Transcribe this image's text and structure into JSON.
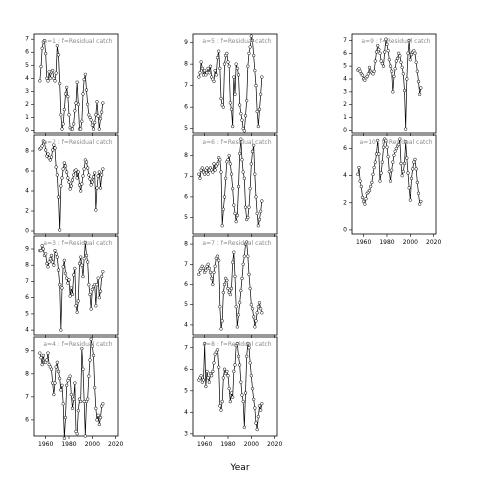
{
  "chart_data": {
    "type": "line",
    "xlabel": "Year",
    "x_ticks": [
      "1960",
      "1980",
      "2000",
      "2020"
    ],
    "xlim": [
      1950,
      2022
    ],
    "panels": [
      {
        "title": "a=1 : f=Residual catch",
        "col": 0,
        "row": 0,
        "ylim": [
          -0.2,
          7.4
        ],
        "yticks": [
          "0",
          "1",
          "2",
          "3",
          "4",
          "5",
          "6",
          "7"
        ],
        "x0": 1955,
        "values": [
          3.8,
          4.9,
          6.3,
          6.8,
          6.9,
          5.9,
          4.0,
          3.8,
          4.5,
          4.0,
          4.5,
          4.6,
          4.0,
          3.8,
          4.4,
          6.5,
          5.8,
          3.6,
          1.2,
          0.1,
          0.5,
          1.6,
          2.8,
          3.3,
          2.6,
          1.2,
          0.2,
          0.1,
          0.1,
          0.5,
          1.5,
          2.1,
          3.7,
          2.0,
          0.1,
          0.1,
          0.7,
          2.8,
          3.9,
          4.3,
          3.1,
          2.0,
          1.2,
          1.0,
          0.8,
          0.4,
          0.1,
          0.6,
          1.2,
          2.2,
          1.1,
          0.1,
          0.9,
          1.4,
          2.1
        ]
      },
      {
        "title": "a=2 : f=Residual catch",
        "col": 0,
        "row": 1,
        "ylim": [
          -0.3,
          9.6
        ],
        "yticks": [
          "0",
          "2",
          "4",
          "6",
          "8"
        ],
        "x0": 1955,
        "values": [
          8.2,
          8.3,
          8.5,
          9.0,
          8.9,
          8.1,
          7.5,
          7.7,
          7.3,
          7.1,
          7.4,
          8.1,
          8.6,
          8.3,
          6.4,
          5.6,
          3.4,
          0.1,
          4.5,
          5.3,
          6.2,
          6.8,
          6.5,
          5.9,
          5.3,
          4.9,
          4.2,
          4.5,
          5.1,
          5.6,
          6.0,
          6.1,
          5.3,
          5.9,
          4.6,
          4.0,
          4.7,
          5.5,
          6.2,
          7.1,
          6.9,
          6.3,
          5.6,
          5.2,
          4.6,
          4.9,
          5.4,
          5.8,
          2.1,
          4.3,
          5.5,
          5.9,
          4.3,
          5.6,
          6.2
        ]
      },
      {
        "title": "a=3 : f=Residual catch",
        "col": 0,
        "row": 2,
        "ylim": [
          3.7,
          9.8
        ],
        "yticks": [
          "4",
          "5",
          "6",
          "7",
          "8",
          "9"
        ],
        "x0": 1955,
        "values": [
          8.9,
          8.9,
          9.2,
          9.0,
          8.6,
          8.7,
          8.1,
          7.9,
          8.2,
          8.4,
          8.6,
          8.2,
          8.0,
          8.9,
          8.7,
          8.5,
          7.7,
          6.8,
          4.0,
          6.6,
          7.9,
          8.3,
          7.5,
          7.2,
          6.9,
          7.1,
          6.1,
          6.6,
          6.2,
          7.4,
          7.8,
          5.5,
          5.1,
          5.8,
          8.1,
          8.5,
          8.0,
          7.3,
          8.4,
          9.4,
          8.6,
          8.2,
          6.8,
          6.2,
          5.3,
          6.5,
          6.7,
          6.8,
          5.5,
          6.8,
          7.2,
          6.0,
          6.4,
          7.3,
          7.6
        ]
      },
      {
        "title": "a=4 : f=Residual catch",
        "col": 0,
        "row": 3,
        "ylim": [
          5.3,
          9.6
        ],
        "yticks": [
          "6",
          "7",
          "8",
          "9"
        ],
        "x0": 1955,
        "values": [
          8.9,
          8.7,
          8.4,
          8.8,
          8.5,
          8.5,
          8.6,
          8.9,
          8.4,
          8.3,
          8.2,
          7.6,
          7.1,
          7.6,
          8.3,
          8.5,
          8.1,
          7.8,
          7.3,
          7.5,
          6.7,
          5.2,
          6.1,
          7.5,
          7.7,
          7.8,
          7.9,
          7.1,
          6.5,
          6.9,
          7.6,
          5.5,
          5.4,
          6.4,
          6.9,
          6.8,
          9.1,
          8.2,
          6.8,
          5.3,
          6.8,
          6.9,
          7.9,
          8.6,
          9.5,
          9.2,
          8.8,
          7.4,
          6.5,
          6.0,
          6.2,
          5.8,
          6.1,
          6.6,
          6.7
        ]
      },
      {
        "title": "a=5 : f=Residual catch",
        "col": 1,
        "row": 0,
        "ylim": [
          4.8,
          9.4
        ],
        "yticks": [
          "5",
          "6",
          "7",
          "8",
          "9"
        ],
        "x0": 1955,
        "values": [
          7.4,
          7.6,
          8.1,
          7.8,
          7.5,
          7.7,
          7.5,
          7.6,
          7.8,
          7.6,
          7.9,
          7.4,
          7.3,
          7.2,
          7.7,
          7.5,
          8.3,
          8.6,
          7.8,
          6.4,
          6.1,
          6.0,
          8.0,
          8.4,
          8.5,
          8.1,
          7.9,
          6.2,
          5.9,
          5.1,
          7.4,
          6.6,
          8.0,
          7.8,
          7.5,
          6.1,
          5.7,
          5.4,
          5.0,
          4.9,
          5.6,
          6.3,
          7.9,
          8.5,
          8.8,
          9.3,
          9.1,
          8.4,
          7.7,
          7.0,
          5.8,
          5.1,
          5.9,
          6.6,
          7.4
        ]
      },
      {
        "title": "a=6 : f=Residual catch",
        "col": 1,
        "row": 1,
        "ylim": [
          4.2,
          9.0
        ],
        "yticks": [
          "5",
          "6",
          "7",
          "8"
        ],
        "x0": 1955,
        "values": [
          7.1,
          6.9,
          7.3,
          7.4,
          7.2,
          7.1,
          7.3,
          7.4,
          7.1,
          7.3,
          7.4,
          7.3,
          7.2,
          7.6,
          7.3,
          7.5,
          7.6,
          7.9,
          7.8,
          7.2,
          4.6,
          5.4,
          6.0,
          6.9,
          7.7,
          7.8,
          8.0,
          7.6,
          7.1,
          6.4,
          5.6,
          5.2,
          4.8,
          5.1,
          6.5,
          8.1,
          8.8,
          7.8,
          7.2,
          6.9,
          5.5,
          4.9,
          5.0,
          5.5,
          6.4,
          7.6,
          8.2,
          8.5,
          7.1,
          6.0,
          5.2,
          4.6,
          4.9,
          5.3,
          5.8
        ]
      },
      {
        "title": "a=7 : f=Residual catch",
        "col": 1,
        "row": 2,
        "ylim": [
          3.5,
          8.4
        ],
        "yticks": [
          "4",
          "5",
          "6",
          "7",
          "8"
        ],
        "x0": 1955,
        "values": [
          6.5,
          6.7,
          6.8,
          6.9,
          6.8,
          6.6,
          6.7,
          6.9,
          7.0,
          6.8,
          6.6,
          6.3,
          6.0,
          6.6,
          6.9,
          7.3,
          7.4,
          7.2,
          4.9,
          3.8,
          4.2,
          5.6,
          6.0,
          6.3,
          6.2,
          5.8,
          5.6,
          5.5,
          5.8,
          7.1,
          7.6,
          6.4,
          4.9,
          3.9,
          4.5,
          5.1,
          5.7,
          6.3,
          7.0,
          7.4,
          8.0,
          8.1,
          7.4,
          6.5,
          5.8,
          5.0,
          4.8,
          4.4,
          3.9,
          4.2,
          4.6,
          4.9,
          5.1,
          4.8,
          4.6
        ]
      },
      {
        "title": "a=8 : f=Residual catch",
        "col": 1,
        "row": 3,
        "ylim": [
          2.9,
          7.5
        ],
        "yticks": [
          "3",
          "4",
          "5",
          "6",
          "7"
        ],
        "x0": 1955,
        "values": [
          5.5,
          5.6,
          5.7,
          5.4,
          5.5,
          7.2,
          5.2,
          5.9,
          5.6,
          5.4,
          5.8,
          5.7,
          5.9,
          6.3,
          6.7,
          6.8,
          6.9,
          6.1,
          4.3,
          4.1,
          4.5,
          5.6,
          6.0,
          5.8,
          5.9,
          5.7,
          5.1,
          4.5,
          4.9,
          4.7,
          5.9,
          6.2,
          7.1,
          7.2,
          6.6,
          6.2,
          5.4,
          4.8,
          4.5,
          3.3,
          4.9,
          6.6,
          7.2,
          7.0,
          6.3,
          5.7,
          5.1,
          4.6,
          4.2,
          3.5,
          3.2,
          3.8,
          4.3,
          4.1,
          4.4
        ]
      },
      {
        "title": "a=9 : f=Residual catch",
        "col": 2,
        "row": 0,
        "ylim": [
          -0.2,
          7.5
        ],
        "yticks": [
          "0",
          "1",
          "2",
          "3",
          "4",
          "5",
          "6",
          "7"
        ],
        "x0": 1955,
        "values": [
          4.7,
          4.8,
          4.6,
          4.4,
          4.3,
          4.0,
          3.9,
          4.1,
          4.2,
          4.4,
          4.9,
          4.6,
          4.5,
          4.4,
          4.6,
          5.4,
          6.1,
          6.6,
          6.3,
          6.0,
          5.4,
          5.2,
          5.0,
          6.1,
          7.1,
          6.7,
          6.2,
          5.5,
          5.0,
          4.6,
          3.0,
          4.2,
          4.8,
          5.4,
          5.6,
          6.0,
          5.8,
          5.3,
          4.9,
          4.4,
          3.1,
          0.1,
          4.0,
          6.0,
          7.0,
          5.5,
          5.9,
          6.1,
          6.2,
          6.0,
          5.3,
          4.6,
          3.8,
          2.8,
          3.3
        ]
      },
      {
        "title": "a=10 : f=Residual catch",
        "col": 2,
        "row": 1,
        "ylim": [
          -0.3,
          7.0
        ],
        "yticks": [
          "0",
          "2",
          "4",
          "6"
        ],
        "x0": 1955,
        "values": [
          4.1,
          4.6,
          3.6,
          3.2,
          2.4,
          2.1,
          1.9,
          2.3,
          2.7,
          2.8,
          2.9,
          3.2,
          3.5,
          4.1,
          4.6,
          5.0,
          5.6,
          6.6,
          5.6,
          3.6,
          4.2,
          5.0,
          6.1,
          6.7,
          6.6,
          6.1,
          5.4,
          4.3,
          3.6,
          4.4,
          5.0,
          5.5,
          5.8,
          6.0,
          6.2,
          6.3,
          6.7,
          4.9,
          4.0,
          4.3,
          4.9,
          6.5,
          5.3,
          4.2,
          3.1,
          2.2,
          3.8,
          4.5,
          5.0,
          5.2,
          4.5,
          3.5,
          2.7,
          1.9,
          2.1
        ]
      }
    ]
  }
}
